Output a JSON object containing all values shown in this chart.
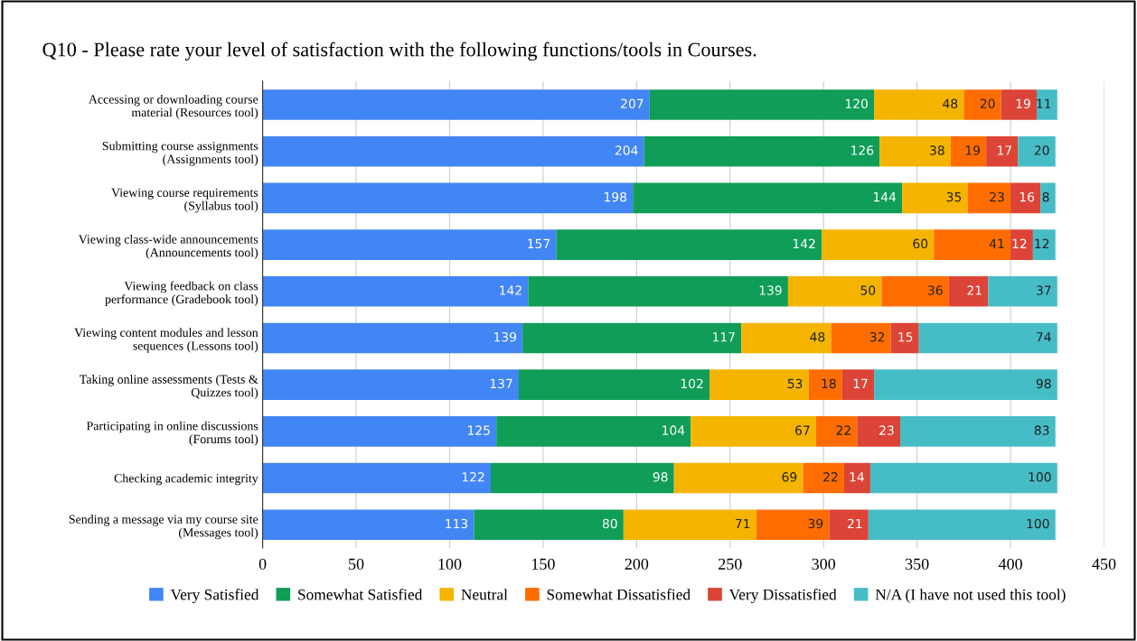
{
  "chart_data": {
    "type": "bar",
    "orientation": "horizontal",
    "stacked": true,
    "title": "Q10 - Please rate your level of satisfaction with the following functions/tools in Courses.",
    "categories": [
      "Accessing or downloading course\nmaterial (Resources tool)",
      "Submitting course assignments\n(Assignments tool)",
      "Viewing course requirements\n(Syllabus tool)",
      "Viewing class-wide announcements\n(Announcements tool)",
      "Viewing feedback on class\nperformance (Gradebook tool)",
      "Viewing content modules and lesson\nsequences (Lessons tool)",
      "Taking online assessments (Tests &\nQuizzes tool)",
      "Participating in online discussions\n(Forums tool)",
      "Checking academic integrity",
      "Sending a message via my course site\n(Messages tool)"
    ],
    "series": [
      {
        "name": "Very Satisfied",
        "color": "#4285f4",
        "values": [
          207,
          204,
          198,
          157,
          142,
          139,
          137,
          125,
          122,
          113
        ]
      },
      {
        "name": "Somewhat Satisfied",
        "color": "#0f9d58",
        "values": [
          120,
          126,
          144,
          142,
          139,
          117,
          102,
          104,
          98,
          80
        ]
      },
      {
        "name": "Neutral",
        "color": "#f4b400",
        "values": [
          48,
          38,
          35,
          60,
          50,
          48,
          53,
          67,
          69,
          71
        ]
      },
      {
        "name": "Somewhat Dissatisfied",
        "color": "#ff6d01",
        "values": [
          20,
          19,
          23,
          41,
          36,
          32,
          18,
          22,
          22,
          39
        ]
      },
      {
        "name": "Very Dissatisfied",
        "color": "#db4437",
        "values": [
          19,
          17,
          16,
          12,
          21,
          15,
          17,
          23,
          14,
          21
        ]
      },
      {
        "name": "N/A (I have not used this tool)",
        "color": "#46bdc6",
        "values": [
          11,
          20,
          8,
          12,
          37,
          74,
          98,
          83,
          100,
          100
        ]
      }
    ],
    "xlim": [
      0,
      450
    ],
    "xticks": [
      0,
      50,
      100,
      150,
      200,
      250,
      300,
      350,
      400,
      450
    ],
    "grid": "x",
    "legend": "bottom",
    "data_labels": true
  }
}
